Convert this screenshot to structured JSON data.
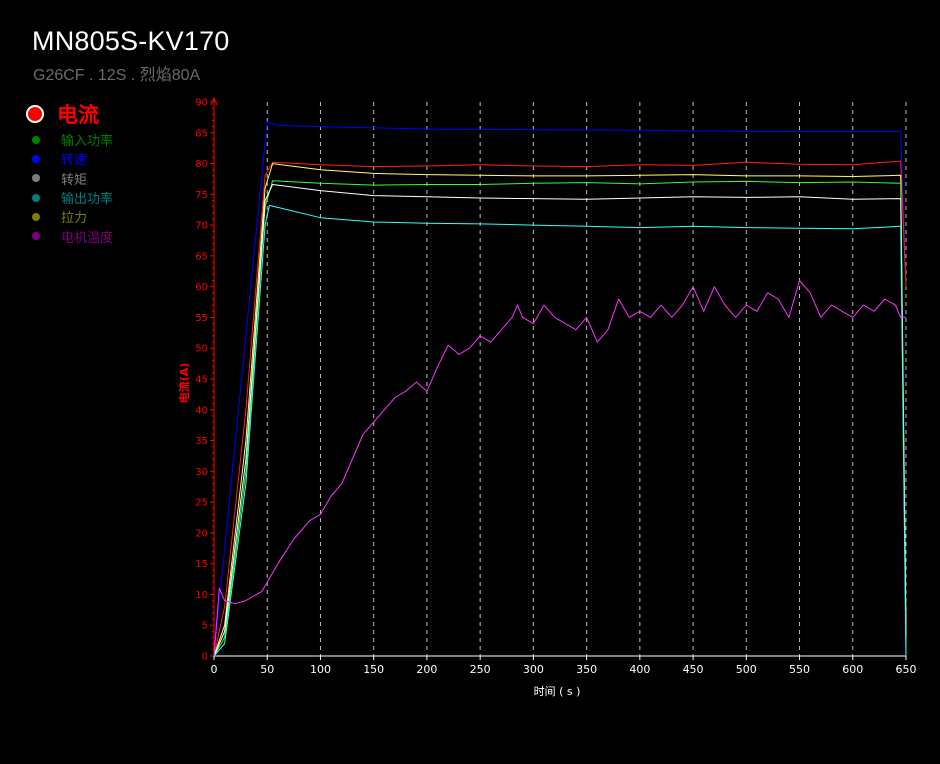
{
  "header": {
    "title": "MN805S-KV170",
    "subtitle": "G26CF . 12S . 烈焰80A"
  },
  "legend": {
    "active": {
      "label": "电流",
      "color": "#ff0000"
    },
    "items": [
      {
        "label": "输入功率",
        "color": "#008000"
      },
      {
        "label": "转速",
        "color": "#0000ff"
      },
      {
        "label": "转矩",
        "color": "#7f7f7f"
      },
      {
        "label": "输出功率",
        "color": "#007f7f"
      },
      {
        "label": "拉力",
        "color": "#7f7f00"
      },
      {
        "label": "电机温度",
        "color": "#7f007f"
      }
    ]
  },
  "chart_data": {
    "type": "line",
    "xlabel": "时间 ( s )",
    "ylabel": "电流(A)",
    "xlim": [
      0,
      650
    ],
    "ylim": [
      0,
      90
    ],
    "xticks": [
      0,
      50,
      100,
      150,
      200,
      250,
      300,
      350,
      400,
      450,
      500,
      550,
      600,
      650
    ],
    "yticks": [
      0,
      5,
      10,
      15,
      20,
      25,
      30,
      35,
      40,
      45,
      50,
      55,
      60,
      65,
      70,
      75,
      80,
      85,
      90
    ],
    "grid": "vertical dashed",
    "axis_color": "#ff0000",
    "series": [
      {
        "color": "#0000ff",
        "x": [
          0,
          50,
          60,
          100,
          200,
          300,
          400,
          500,
          600,
          645,
          650
        ],
        "y": [
          0,
          86.8,
          86.2,
          86.0,
          85.6,
          85.5,
          85.4,
          85.2,
          85.2,
          85.2,
          60
        ]
      },
      {
        "color": "#ff2020",
        "x": [
          0,
          10,
          30,
          48,
          55,
          100,
          150,
          200,
          250,
          300,
          350,
          400,
          450,
          500,
          550,
          600,
          645,
          650
        ],
        "y": [
          0,
          8,
          40,
          78,
          80.2,
          79.8,
          79.5,
          79.6,
          79.8,
          79.6,
          79.5,
          79.8,
          79.7,
          80.2,
          79.9,
          79.8,
          80.4,
          60
        ]
      },
      {
        "color": "#ffff66",
        "x": [
          0,
          10,
          30,
          48,
          55,
          100,
          150,
          200,
          250,
          300,
          350,
          400,
          450,
          500,
          550,
          600,
          645,
          650
        ],
        "y": [
          0,
          5,
          35,
          76,
          80.0,
          79.0,
          78.4,
          78.2,
          78.1,
          78.0,
          78.0,
          78.1,
          78.2,
          78.0,
          78.0,
          77.9,
          78.1,
          5
        ]
      },
      {
        "color": "#33ff33",
        "x": [
          0,
          10,
          30,
          48,
          55,
          100,
          150,
          200,
          250,
          300,
          350,
          400,
          450,
          500,
          550,
          600,
          645,
          650
        ],
        "y": [
          0,
          3,
          30,
          73,
          77.2,
          76.8,
          76.5,
          76.6,
          76.6,
          76.8,
          76.9,
          76.7,
          77.0,
          77.1,
          76.9,
          77.0,
          76.8,
          0
        ]
      },
      {
        "color": "#ffffff",
        "x": [
          0,
          10,
          30,
          48,
          55,
          100,
          150,
          200,
          250,
          300,
          350,
          400,
          450,
          500,
          550,
          600,
          645,
          650
        ],
        "y": [
          0,
          4,
          32,
          74,
          76.6,
          75.6,
          74.8,
          74.6,
          74.4,
          74.3,
          74.2,
          74.4,
          74.6,
          74.5,
          74.6,
          74.2,
          74.3,
          3
        ]
      },
      {
        "color": "#33ffff",
        "x": [
          0,
          10,
          30,
          48,
          52,
          100,
          150,
          200,
          250,
          300,
          350,
          400,
          450,
          500,
          550,
          600,
          645,
          650
        ],
        "y": [
          0,
          2,
          28,
          70,
          73.2,
          71.2,
          70.5,
          70.3,
          70.2,
          70.0,
          69.8,
          69.6,
          69.8,
          69.6,
          69.5,
          69.4,
          69.8,
          0
        ]
      },
      {
        "color": "#ff33ff",
        "x": [
          0,
          5,
          10,
          20,
          30,
          40,
          45,
          50,
          60,
          75,
          90,
          100,
          110,
          120,
          130,
          140,
          150,
          160,
          170,
          180,
          190,
          200,
          210,
          220,
          230,
          240,
          250,
          260,
          270,
          280,
          285,
          290,
          300,
          310,
          320,
          330,
          340,
          350,
          360,
          370,
          380,
          390,
          400,
          410,
          420,
          430,
          440,
          450,
          460,
          470,
          480,
          490,
          500,
          510,
          520,
          530,
          540,
          550,
          560,
          570,
          580,
          590,
          600,
          610,
          620,
          630,
          640,
          645,
          650
        ],
        "y": [
          0,
          11,
          9,
          8.5,
          9,
          10,
          10.5,
          12,
          15,
          19,
          22,
          23,
          26,
          28,
          32,
          36,
          38,
          40,
          42,
          43,
          44.5,
          43,
          47,
          50.5,
          49,
          50,
          52,
          51,
          53,
          55,
          57,
          55,
          54,
          57,
          55,
          54,
          53,
          55,
          51,
          53,
          58,
          55,
          56,
          55,
          57,
          55,
          57,
          60,
          56,
          60,
          57,
          55,
          57,
          56,
          59,
          58,
          55,
          61,
          59,
          55,
          57,
          56,
          55,
          57,
          56,
          58,
          57,
          55,
          55
        ]
      }
    ]
  }
}
